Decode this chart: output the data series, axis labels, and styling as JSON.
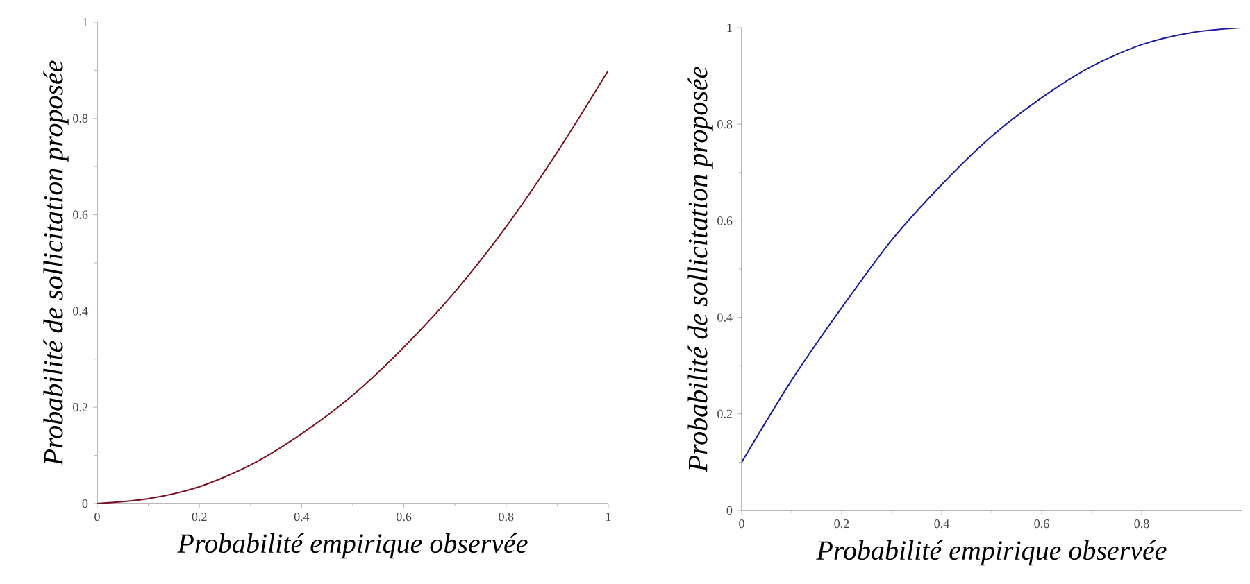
{
  "chart_data": [
    {
      "type": "line",
      "xlabel": "Probabilité empirique observée",
      "ylabel": "Probabilité de sollicitation proposée",
      "xlim": [
        0,
        1
      ],
      "ylim": [
        0,
        1
      ],
      "xticks": [
        0,
        0.2,
        0.4,
        0.6,
        0.8,
        1
      ],
      "yticks": [
        0,
        0.2,
        0.4,
        0.6,
        0.8,
        1
      ],
      "x": [
        0,
        0.1,
        0.2,
        0.3,
        0.4,
        0.5,
        0.6,
        0.7,
        0.8,
        0.9,
        1
      ],
      "series": [
        {
          "color": "#7a1020",
          "values": [
            0,
            0.01,
            0.035,
            0.08,
            0.145,
            0.225,
            0.325,
            0.44,
            0.575,
            0.73,
            0.9
          ]
        }
      ]
    },
    {
      "type": "line",
      "xlabel": "Probabilité empirique observée",
      "ylabel": "Probabilité de sollicitation proposée",
      "xlim": [
        0,
        1
      ],
      "ylim": [
        0,
        1
      ],
      "xticks": [
        0,
        0.2,
        0.4,
        0.6,
        0.8
      ],
      "yticks": [
        0,
        0.2,
        0.4,
        0.6,
        0.8,
        1
      ],
      "x": [
        0,
        0.1,
        0.2,
        0.3,
        0.4,
        0.5,
        0.6,
        0.7,
        0.8,
        0.9,
        1
      ],
      "series": [
        {
          "color": "#1a1aa0",
          "values": [
            0.1,
            0.27,
            0.42,
            0.56,
            0.675,
            0.775,
            0.855,
            0.92,
            0.965,
            0.99,
            1.0
          ]
        }
      ]
    }
  ]
}
